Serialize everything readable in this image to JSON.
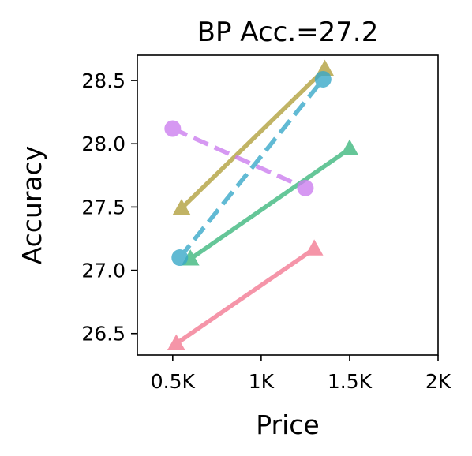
{
  "chart_data": {
    "type": "line",
    "title": "BP Acc.=27.2",
    "xlabel": "Price",
    "ylabel": "Accuracy",
    "xlim": [
      300,
      2000
    ],
    "ylim": [
      26.33,
      28.7
    ],
    "x_ticks": [
      {
        "value": 500,
        "label": "0.5K"
      },
      {
        "value": 1000,
        "label": "1K"
      },
      {
        "value": 1500,
        "label": "1.5K"
      },
      {
        "value": 2000,
        "label": "2K"
      }
    ],
    "y_ticks": [
      {
        "value": 26.5,
        "label": "26.5"
      },
      {
        "value": 27.0,
        "label": "27.0"
      },
      {
        "value": 27.5,
        "label": "27.5"
      },
      {
        "value": 28.0,
        "label": "28.0"
      },
      {
        "value": 28.5,
        "label": "28.5"
      }
    ],
    "grid": false,
    "legend": "none",
    "series": [
      {
        "color": "#f37b93",
        "marker": "triangle",
        "dash": false,
        "points": [
          [
            520,
            26.42
          ],
          [
            1300,
            27.17
          ]
        ]
      },
      {
        "color": "#3fb97f",
        "marker": "triangle",
        "dash": false,
        "points": [
          [
            600,
            27.09
          ],
          [
            1500,
            27.96
          ]
        ]
      },
      {
        "color": "#b2a13f",
        "marker": "triangle",
        "dash": false,
        "points": [
          [
            550,
            27.49
          ],
          [
            1360,
            28.59
          ]
        ]
      },
      {
        "color": "#cc7ff0",
        "marker": "circle",
        "dash": true,
        "points": [
          [
            500,
            28.12
          ],
          [
            1250,
            27.65
          ]
        ]
      },
      {
        "color": "#3aa9c9",
        "marker": "circle",
        "dash": true,
        "points": [
          [
            540,
            27.1
          ],
          [
            1350,
            28.51
          ]
        ]
      }
    ]
  }
}
